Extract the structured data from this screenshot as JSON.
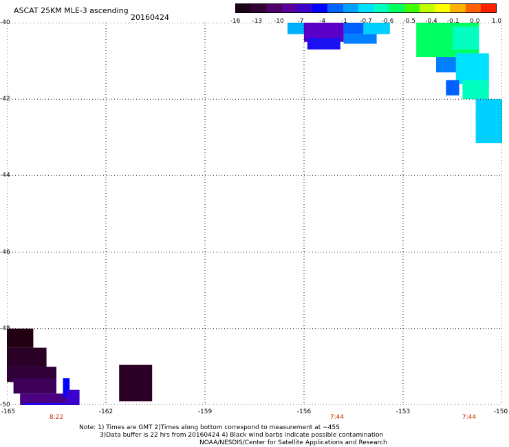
{
  "header": {
    "title": "ASCAT 25KM MLE-3 ascending",
    "date": "20160424"
  },
  "colorbar": {
    "labels": [
      "-16",
      "-13",
      "-10",
      "-7",
      "-4",
      "-1",
      "-0.7",
      "-0.6",
      "-0.5",
      "-0.4",
      "-0.1",
      "0.0",
      "1.0"
    ],
    "colors": [
      "#1a0018",
      "#330033",
      "#4b0066",
      "#5a0099",
      "#3a00cc",
      "#0000ff",
      "#0066ff",
      "#00a0ff",
      "#00e0ff",
      "#00ffc0",
      "#00ff60",
      "#40ff00",
      "#c0ff00",
      "#ffff00",
      "#ffb000",
      "#ff6000",
      "#ff2000"
    ]
  },
  "axes": {
    "y_ticks": [
      "-40",
      "-42",
      "-44",
      "-46",
      "-48",
      "-50"
    ],
    "x_ticks": [
      "-165",
      "-162",
      "-159",
      "-156",
      "-153",
      "-150"
    ]
  },
  "time_labels": [
    "8:22",
    "7:44",
    "7:44"
  ],
  "notes": [
    "Note: 1) Times are GMT 2)Times along bottom correspond to measurement at −45S",
    "3)Data buffer is 22 hrs from 20160424 4) Black wind barbs indicate possible contamination",
    "NOAA/NESDIS/Center for Satellite Applications and Research"
  ],
  "swaths": [
    {
      "lon": -165.0,
      "lat": -48.0,
      "w": 0.8,
      "h": 0.5,
      "color": "#220012"
    },
    {
      "lon": -165.0,
      "lat": -48.5,
      "w": 1.2,
      "h": 0.5,
      "color": "#2a0026"
    },
    {
      "lon": -165.0,
      "lat": -49.0,
      "w": 1.5,
      "h": 0.4,
      "color": "#300038"
    },
    {
      "lon": -164.8,
      "lat": -49.3,
      "w": 1.3,
      "h": 0.4,
      "color": "#3c0058"
    },
    {
      "lon": -164.6,
      "lat": -49.7,
      "w": 1.5,
      "h": 0.35,
      "color": "#4a0080"
    },
    {
      "lon": -164.5,
      "lat": -49.95,
      "w": 1.6,
      "h": 0.1,
      "color": "#2200ff"
    },
    {
      "lon": -163.3,
      "lat": -49.3,
      "w": 0.2,
      "h": 0.5,
      "color": "#0000ff"
    },
    {
      "lon": -163.2,
      "lat": -49.6,
      "w": 0.4,
      "h": 0.4,
      "color": "#3a00d0"
    },
    {
      "lon": -161.6,
      "lat": -48.95,
      "w": 1.0,
      "h": 0.95,
      "color": "#2a0026"
    },
    {
      "lon": -156.5,
      "lat": -40.0,
      "w": 0.5,
      "h": 0.3,
      "color": "#00b0ff"
    },
    {
      "lon": -156.0,
      "lat": -40.0,
      "w": 1.2,
      "h": 0.5,
      "color": "#5a00c8"
    },
    {
      "lon": -155.9,
      "lat": -40.4,
      "w": 1.0,
      "h": 0.3,
      "color": "#1a10f0"
    },
    {
      "lon": -154.8,
      "lat": -40.0,
      "w": 0.6,
      "h": 0.3,
      "color": "#0060ff"
    },
    {
      "lon": -154.2,
      "lat": -40.0,
      "w": 0.8,
      "h": 0.3,
      "color": "#00d0ff"
    },
    {
      "lon": -154.8,
      "lat": -40.3,
      "w": 1.0,
      "h": 0.25,
      "color": "#0080ff"
    },
    {
      "lon": -152.6,
      "lat": -40.0,
      "w": 1.9,
      "h": 0.9,
      "color": "#00ff60"
    },
    {
      "lon": -151.5,
      "lat": -40.1,
      "w": 0.8,
      "h": 0.6,
      "color": "#00ffc0"
    },
    {
      "lon": -152.0,
      "lat": -40.9,
      "w": 0.8,
      "h": 0.4,
      "color": "#0080ff"
    },
    {
      "lon": -151.4,
      "lat": -40.8,
      "w": 1.0,
      "h": 0.8,
      "color": "#00e0ff"
    },
    {
      "lon": -151.7,
      "lat": -41.5,
      "w": 0.4,
      "h": 0.4,
      "color": "#0060ff"
    },
    {
      "lon": -151.2,
      "lat": -41.5,
      "w": 0.8,
      "h": 0.5,
      "color": "#00ffc0"
    },
    {
      "lon": -150.8,
      "lat": -42.0,
      "w": 1.0,
      "h": 0.55,
      "color": "#00d0ff"
    },
    {
      "lon": -150.8,
      "lat": -42.5,
      "w": 0.85,
      "h": 0.65,
      "color": "#00d0ff"
    }
  ]
}
